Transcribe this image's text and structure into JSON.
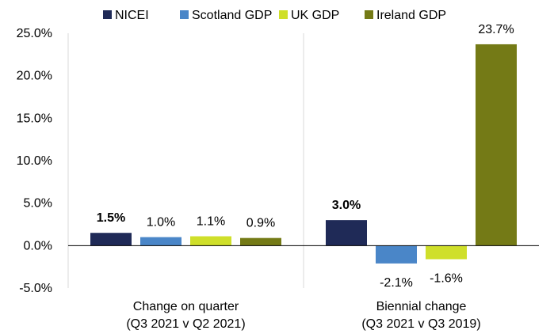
{
  "chart_data": {
    "type": "bar",
    "categories": [
      [
        "Change on quarter",
        "(Q3 2021 v Q2 2021)"
      ],
      [
        "Biennial change",
        "(Q3 2021 v Q3 2019)"
      ]
    ],
    "series": [
      {
        "name": "NICEI",
        "color": "#1f2a57",
        "values": [
          1.5,
          3.0
        ],
        "labels": [
          "1.5%",
          "3.0%"
        ],
        "bold_labels": true
      },
      {
        "name": "Scotland GDP",
        "color": "#4a86c8",
        "values": [
          1.0,
          -2.1
        ],
        "labels": [
          "1.0%",
          "-2.1%"
        ],
        "bold_labels": false
      },
      {
        "name": "UK GDP",
        "color": "#cfdf2a",
        "values": [
          1.1,
          -1.6
        ],
        "labels": [
          "1.1%",
          "-1.6%"
        ],
        "bold_labels": false
      },
      {
        "name": "Ireland GDP",
        "color": "#747a16",
        "values": [
          0.9,
          23.7
        ],
        "labels": [
          "0.9%",
          "23.7%"
        ],
        "bold_labels": false
      }
    ],
    "ylim": [
      -5,
      25
    ],
    "yticks": [
      "-5.0%",
      "0.0%",
      "5.0%",
      "10.0%",
      "15.0%",
      "20.0%",
      "25.0%"
    ],
    "ytick_values": [
      -5,
      0,
      5,
      10,
      15,
      20,
      25
    ],
    "legend_position": "top",
    "grid": false
  }
}
